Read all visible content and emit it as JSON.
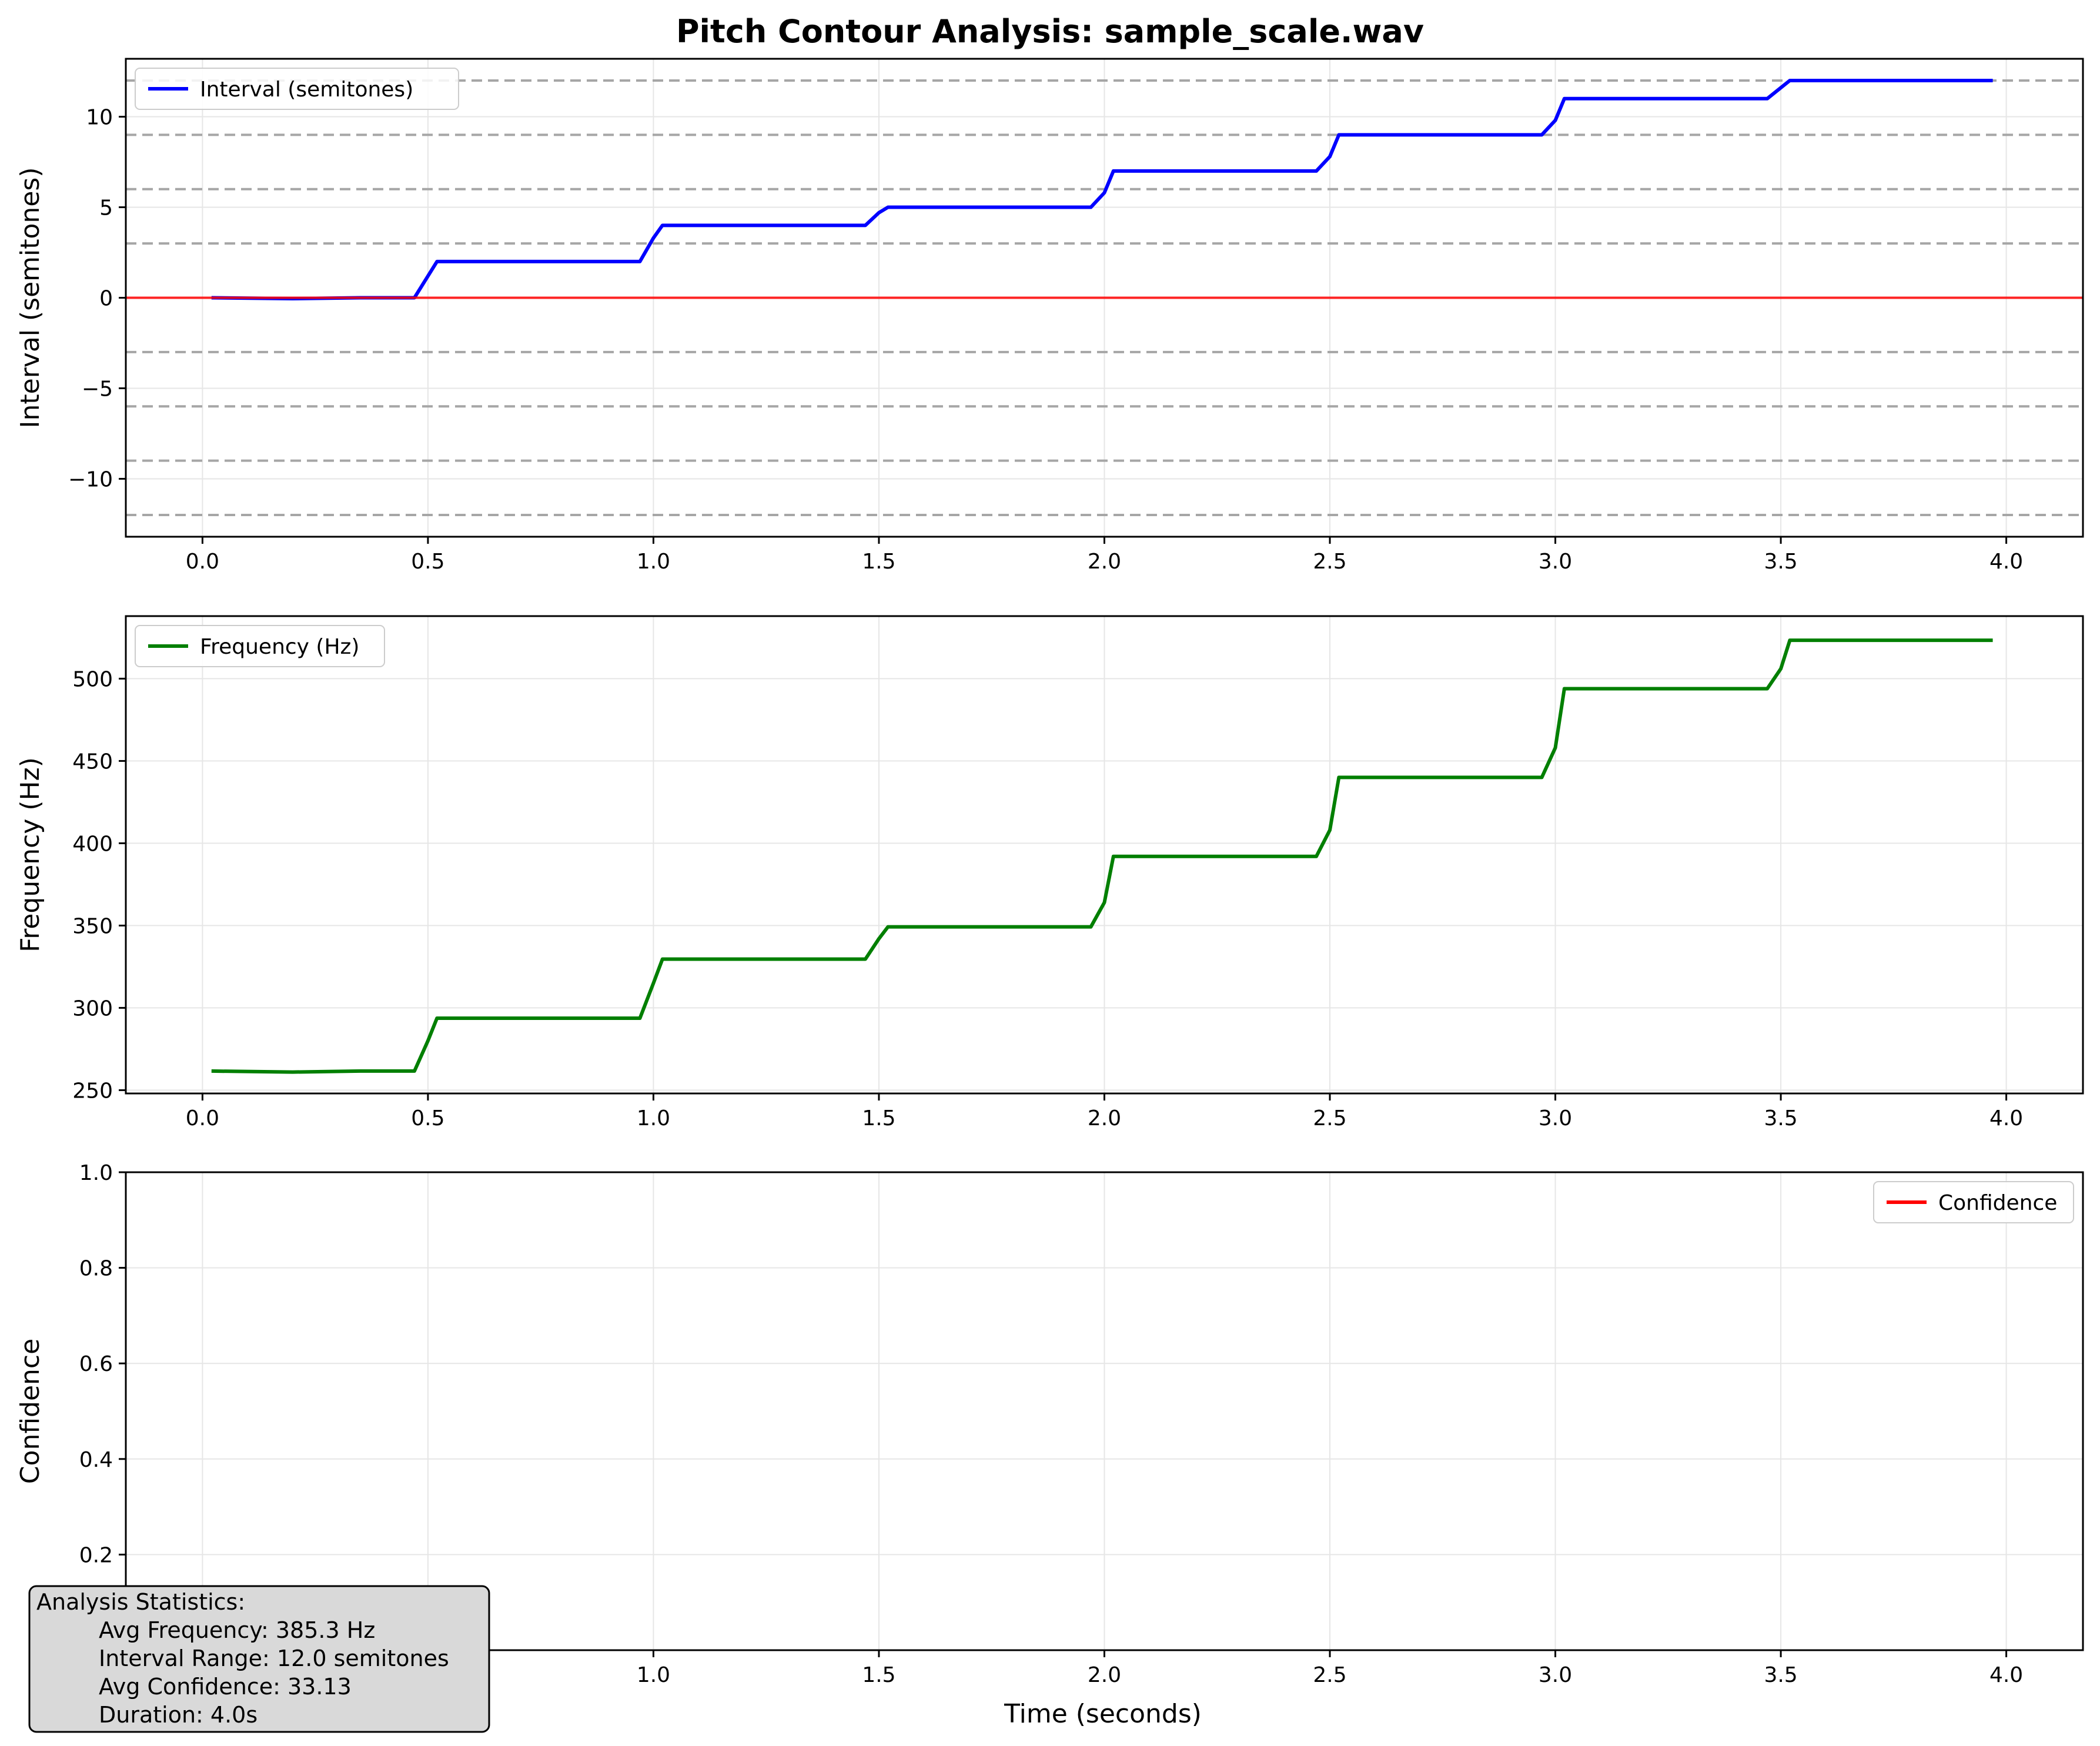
{
  "title": "Pitch Contour Analysis: sample_scale.wav",
  "colors": {
    "interval": "#0000ff",
    "frequency": "#007f00",
    "confidence": "#ff0000",
    "reference_line": "#ff0000",
    "semitone_guides": "#a6a6a6",
    "stats_box_bg": "#d9d9d9"
  },
  "chart_data": [
    {
      "type": "line",
      "id": "interval",
      "ylabel": "Interval (semitones)",
      "xlabel": "",
      "xlim": [
        -0.17,
        4.17
      ],
      "ylim": [
        -13.2,
        13.2
      ],
      "x_ticks": [
        0.0,
        0.5,
        1.0,
        1.5,
        2.0,
        2.5,
        3.0,
        3.5,
        4.0
      ],
      "x_tick_labels": [
        "0.0",
        "0.5",
        "1.0",
        "1.5",
        "2.0",
        "2.5",
        "3.0",
        "3.5",
        "4.0"
      ],
      "y_ticks": [
        -10,
        -5,
        0,
        5,
        10
      ],
      "y_tick_labels": [
        "−10",
        "−5",
        "0",
        "5",
        "10"
      ],
      "grid": true,
      "legend": "top-left",
      "reference_lines": [
        {
          "y": 0,
          "style": "solid",
          "color": "red"
        },
        {
          "y": -12,
          "style": "dashed"
        },
        {
          "y": -9,
          "style": "dashed"
        },
        {
          "y": -6,
          "style": "dashed"
        },
        {
          "y": -3,
          "style": "dashed"
        },
        {
          "y": 3,
          "style": "dashed"
        },
        {
          "y": 6,
          "style": "dashed"
        },
        {
          "y": 9,
          "style": "dashed"
        },
        {
          "y": 12,
          "style": "dashed"
        }
      ],
      "series": [
        {
          "name": "Interval (semitones)",
          "x": [
            0.02,
            0.2,
            0.35,
            0.47,
            0.5,
            0.52,
            0.97,
            1.0,
            1.02,
            1.47,
            1.5,
            1.52,
            1.97,
            2.0,
            2.02,
            2.47,
            2.5,
            2.52,
            2.97,
            3.0,
            3.02,
            3.47,
            3.5,
            3.52,
            3.97
          ],
          "y": [
            0.0,
            -0.05,
            0.0,
            0.0,
            1.2,
            2.0,
            2.0,
            3.3,
            4.0,
            4.0,
            4.7,
            5.0,
            5.0,
            5.8,
            7.0,
            7.0,
            7.8,
            9.0,
            9.0,
            9.8,
            11.0,
            11.0,
            11.6,
            12.0,
            12.0
          ]
        }
      ]
    },
    {
      "type": "line",
      "id": "frequency",
      "ylabel": "Frequency (Hz)",
      "xlabel": "",
      "xlim": [
        -0.17,
        4.17
      ],
      "ylim": [
        248,
        538
      ],
      "x_ticks": [
        0.0,
        0.5,
        1.0,
        1.5,
        2.0,
        2.5,
        3.0,
        3.5,
        4.0
      ],
      "x_tick_labels": [
        "0.0",
        "0.5",
        "1.0",
        "1.5",
        "2.0",
        "2.5",
        "3.0",
        "3.5",
        "4.0"
      ],
      "y_ticks": [
        250,
        300,
        350,
        400,
        450,
        500
      ],
      "y_tick_labels": [
        "250",
        "300",
        "350",
        "400",
        "450",
        "500"
      ],
      "grid": true,
      "legend": "top-left",
      "series": [
        {
          "name": "Frequency (Hz)",
          "x": [
            0.02,
            0.2,
            0.35,
            0.47,
            0.5,
            0.52,
            0.97,
            1.0,
            1.02,
            1.47,
            1.5,
            1.52,
            1.97,
            2.0,
            2.02,
            2.47,
            2.5,
            2.52,
            2.97,
            3.0,
            3.02,
            3.47,
            3.5,
            3.52,
            3.97
          ],
          "y": [
            261.6,
            261.0,
            261.6,
            261.6,
            280.0,
            293.7,
            293.7,
            315.0,
            329.6,
            329.6,
            342.0,
            349.2,
            349.2,
            364.0,
            392.0,
            392.0,
            408.0,
            440.0,
            440.0,
            458.0,
            493.9,
            493.9,
            506.0,
            523.3,
            523.3
          ]
        }
      ]
    },
    {
      "type": "line",
      "id": "confidence",
      "ylabel": "Confidence",
      "xlabel": "Time (seconds)",
      "xlim": [
        -0.17,
        4.17
      ],
      "ylim": [
        0.0,
        1.0
      ],
      "x_ticks": [
        0.0,
        0.5,
        1.0,
        1.5,
        2.0,
        2.5,
        3.0,
        3.5,
        4.0
      ],
      "x_tick_labels": [
        "0.0",
        "0.5",
        "1.0",
        "1.5",
        "2.0",
        "2.5",
        "3.0",
        "3.5",
        "4.0"
      ],
      "y_ticks": [
        0.0,
        0.2,
        0.4,
        0.6,
        0.8,
        1.0
      ],
      "y_tick_labels": [
        "0.0",
        "0.2",
        "0.4",
        "0.6",
        "0.8",
        "1.0"
      ],
      "grid": true,
      "legend": "top-right",
      "series": [
        {
          "name": "Confidence",
          "x": [],
          "y": []
        }
      ]
    }
  ],
  "stats_box": {
    "heading": "Analysis Statistics:",
    "lines": [
      "Avg Frequency: 385.3 Hz",
      "Interval Range: 12.0 semitones",
      "Avg Confidence: 33.13",
      "Duration: 4.0s"
    ]
  }
}
